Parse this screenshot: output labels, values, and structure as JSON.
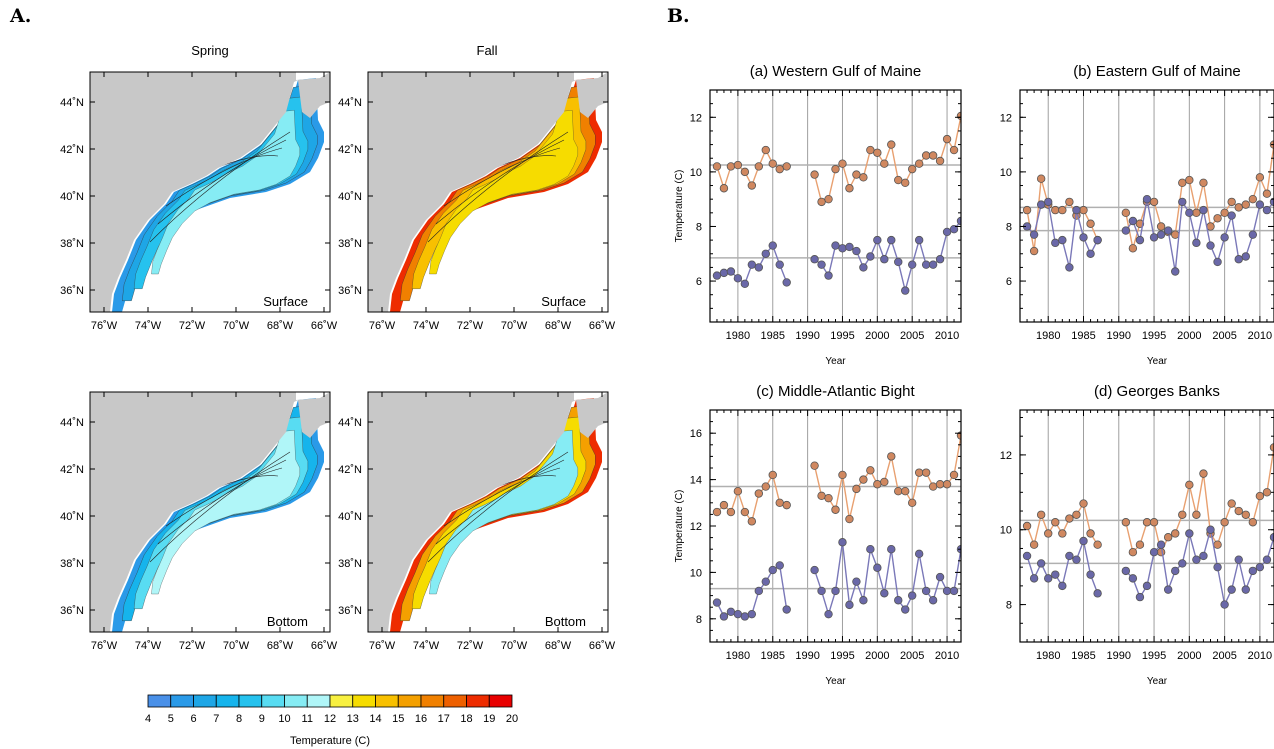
{
  "panels": {
    "A": "A.",
    "B": "B."
  },
  "maps": {
    "col_titles": [
      "Spring",
      "Fall"
    ],
    "row_labels": [
      "Surface",
      "Surface",
      "Bottom",
      "Bottom"
    ],
    "lon_ticks": [
      "76˚W",
      "74˚W",
      "72˚W",
      "70˚W",
      "68˚W",
      "66˚W"
    ],
    "lat_ticks": [
      "44˚N",
      "42˚N",
      "40˚N",
      "38˚N",
      "36˚N"
    ],
    "land_color": "#c8c8c8",
    "colorbar": {
      "levels": [
        "4",
        "5",
        "6",
        "7",
        "8",
        "9",
        "10",
        "11",
        "12",
        "13",
        "14",
        "15",
        "16",
        "17",
        "18",
        "19",
        "20"
      ],
      "colors": [
        "#4a90e8",
        "#2a9ae8",
        "#1ea6e6",
        "#16b4ec",
        "#26c2ee",
        "#58dcf2",
        "#86ecf4",
        "#b0f6f8",
        "#f8f040",
        "#f6dc00",
        "#f8c000",
        "#f4a000",
        "#f08000",
        "#ee6000",
        "#ee2c00",
        "#e80000"
      ],
      "label": "Temperature (C)"
    }
  },
  "chart_data": [
    {
      "type": "line",
      "title": "(a) Western Gulf of Maine",
      "xlabel": "Year",
      "ylabel": "Temperature (C)",
      "xlim": [
        1976,
        2012
      ],
      "ylim": [
        4.5,
        13
      ],
      "yticks": [
        6,
        8,
        10,
        12
      ],
      "xticks": [
        1980,
        1985,
        1990,
        1995,
        2000,
        2005,
        2010
      ],
      "hlines": [
        10.25,
        6.85
      ],
      "series": [
        {
          "color": "#e8a070",
          "x": [
            1977,
            1978,
            1979,
            1980,
            1981,
            1982,
            1983,
            1984,
            1985,
            1986,
            1987,
            1991,
            1992,
            1993,
            1994,
            1995,
            1996,
            1997,
            1998,
            1999,
            2000,
            2001,
            2002,
            2003,
            2004,
            2005,
            2006,
            2007,
            2008,
            2009,
            2010,
            2011,
            2012,
            2013
          ],
          "y": [
            10.2,
            9.4,
            10.2,
            10.25,
            10.0,
            9.5,
            10.2,
            10.8,
            10.3,
            10.1,
            10.2,
            9.9,
            8.9,
            9.0,
            10.1,
            10.3,
            9.4,
            9.9,
            9.8,
            10.8,
            10.7,
            10.3,
            11.0,
            9.7,
            9.6,
            10.1,
            10.3,
            10.6,
            10.6,
            10.4,
            11.2,
            10.8,
            12.05,
            11.0
          ]
        },
        {
          "color": "#7a78b8",
          "x": [
            1977,
            1978,
            1979,
            1980,
            1981,
            1982,
            1983,
            1984,
            1985,
            1986,
            1987,
            1991,
            1992,
            1993,
            1994,
            1995,
            1996,
            1997,
            1998,
            1999,
            2000,
            2001,
            2002,
            2003,
            2004,
            2005,
            2006,
            2007,
            2008,
            2009,
            2010,
            2011,
            2012,
            2013
          ],
          "y": [
            6.2,
            6.3,
            6.35,
            6.1,
            5.9,
            6.6,
            6.5,
            7.0,
            7.3,
            6.6,
            5.95,
            6.8,
            6.6,
            6.2,
            7.3,
            7.2,
            7.25,
            7.1,
            6.5,
            6.9,
            7.5,
            6.8,
            7.5,
            6.7,
            5.65,
            6.6,
            7.5,
            6.6,
            6.6,
            6.8,
            7.8,
            7.9,
            8.2,
            7.7
          ]
        }
      ]
    },
    {
      "type": "line",
      "title": "(b) Eastern Gulf of Maine",
      "xlabel": "Year",
      "ylabel": "",
      "xlim": [
        1976,
        2012
      ],
      "ylim": [
        4.5,
        13
      ],
      "yticks": [
        6,
        8,
        10,
        12
      ],
      "xticks": [
        1980,
        1985,
        1990,
        1995,
        2000,
        2005,
        2010
      ],
      "hlines": [
        8.7,
        7.85
      ],
      "series": [
        {
          "color": "#e8a070",
          "x": [
            1977,
            1978,
            1979,
            1980,
            1981,
            1982,
            1983,
            1984,
            1985,
            1986,
            1987,
            1991,
            1992,
            1993,
            1994,
            1995,
            1996,
            1997,
            1998,
            1999,
            2000,
            2001,
            2002,
            2003,
            2004,
            2005,
            2006,
            2007,
            2008,
            2009,
            2010,
            2011,
            2012,
            2013
          ],
          "y": [
            8.6,
            7.1,
            9.75,
            8.8,
            8.6,
            8.6,
            8.9,
            8.4,
            8.6,
            8.1,
            7.5,
            8.5,
            7.2,
            8.1,
            8.9,
            8.9,
            8.0,
            7.8,
            7.7,
            9.6,
            9.7,
            8.5,
            9.6,
            8.0,
            8.3,
            8.5,
            8.9,
            8.7,
            8.8,
            9.0,
            9.8,
            9.2,
            11.0,
            10.2
          ]
        },
        {
          "color": "#7a78b8",
          "x": [
            1977,
            1978,
            1979,
            1980,
            1981,
            1982,
            1983,
            1984,
            1985,
            1986,
            1987,
            1991,
            1992,
            1993,
            1994,
            1995,
            1996,
            1997,
            1998,
            1999,
            2000,
            2001,
            2002,
            2003,
            2004,
            2005,
            2006,
            2007,
            2008,
            2009,
            2010,
            2011,
            2012,
            2013
          ],
          "y": [
            8.0,
            7.7,
            8.8,
            8.9,
            7.4,
            7.5,
            6.5,
            8.6,
            7.6,
            7.0,
            7.5,
            7.85,
            8.2,
            7.5,
            9.0,
            7.6,
            7.7,
            7.85,
            6.35,
            8.9,
            8.5,
            7.4,
            8.6,
            7.3,
            6.7,
            7.6,
            8.4,
            6.8,
            6.9,
            7.7,
            8.8,
            8.6,
            8.9,
            9.1
          ]
        }
      ]
    },
    {
      "type": "line",
      "title": "(c) Middle-Atlantic Bight",
      "xlabel": "Year",
      "ylabel": "Temperature (C)",
      "xlim": [
        1976,
        2012
      ],
      "ylim": [
        7,
        17
      ],
      "yticks": [
        8,
        10,
        12,
        14,
        16
      ],
      "xticks": [
        1980,
        1985,
        1990,
        1995,
        2000,
        2005,
        2010
      ],
      "hlines": [
        13.7,
        9.3
      ],
      "series": [
        {
          "color": "#e8a070",
          "x": [
            1977,
            1978,
            1979,
            1980,
            1981,
            1982,
            1983,
            1984,
            1985,
            1986,
            1987,
            1991,
            1992,
            1993,
            1994,
            1995,
            1996,
            1997,
            1998,
            1999,
            2000,
            2001,
            2002,
            2003,
            2004,
            2005,
            2006,
            2007,
            2008,
            2009,
            2010,
            2011,
            2012,
            2013
          ],
          "y": [
            12.6,
            12.9,
            12.6,
            13.5,
            12.6,
            12.2,
            13.4,
            13.7,
            14.2,
            13.0,
            12.9,
            14.6,
            13.3,
            13.2,
            12.7,
            14.2,
            12.3,
            13.6,
            14.0,
            14.4,
            13.8,
            13.9,
            15.0,
            13.5,
            13.5,
            13.0,
            14.3,
            14.3,
            13.7,
            13.8,
            13.8,
            14.2,
            15.9,
            13.9
          ]
        },
        {
          "color": "#7a78b8",
          "x": [
            1977,
            1978,
            1979,
            1980,
            1981,
            1982,
            1983,
            1984,
            1985,
            1986,
            1987,
            1991,
            1992,
            1993,
            1994,
            1995,
            1996,
            1997,
            1998,
            1999,
            2000,
            2001,
            2002,
            2003,
            2004,
            2005,
            2006,
            2007,
            2008,
            2009,
            2010,
            2011,
            2012,
            2013
          ],
          "y": [
            8.7,
            8.1,
            8.3,
            8.2,
            8.1,
            8.2,
            9.2,
            9.6,
            10.1,
            10.3,
            8.4,
            10.1,
            9.2,
            8.2,
            9.2,
            11.3,
            8.6,
            9.6,
            8.8,
            11.0,
            10.2,
            9.1,
            11.0,
            8.8,
            8.4,
            9.0,
            10.8,
            9.2,
            8.8,
            9.8,
            9.2,
            9.2,
            11.0,
            9.6
          ]
        }
      ]
    },
    {
      "type": "line",
      "title": "(d) Georges Banks",
      "xlabel": "Year",
      "ylabel": "",
      "xlim": [
        1976,
        2012
      ],
      "ylim": [
        7,
        13.2
      ],
      "yticks": [
        8,
        10,
        12
      ],
      "xticks": [
        1980,
        1985,
        1990,
        1995,
        2000,
        2005,
        2010
      ],
      "hlines": [
        10.25,
        9.1
      ],
      "series": [
        {
          "color": "#e8a070",
          "x": [
            1977,
            1978,
            1979,
            1980,
            1981,
            1982,
            1983,
            1984,
            1985,
            1986,
            1987,
            1991,
            1992,
            1993,
            1994,
            1995,
            1996,
            1997,
            1998,
            1999,
            2000,
            2001,
            2002,
            2003,
            2004,
            2005,
            2006,
            2007,
            2008,
            2009,
            2010,
            2011,
            2012,
            2013
          ],
          "y": [
            10.1,
            9.6,
            10.4,
            9.9,
            10.2,
            9.9,
            10.3,
            10.4,
            10.7,
            9.9,
            9.6,
            10.2,
            9.4,
            9.6,
            10.2,
            10.2,
            9.4,
            9.8,
            9.9,
            10.4,
            11.2,
            10.4,
            11.5,
            9.9,
            9.6,
            10.2,
            10.7,
            10.5,
            10.4,
            10.2,
            10.9,
            11.0,
            12.2,
            12.0
          ]
        },
        {
          "color": "#7a78b8",
          "x": [
            1977,
            1978,
            1979,
            1980,
            1981,
            1982,
            1983,
            1984,
            1985,
            1986,
            1987,
            1991,
            1992,
            1993,
            1994,
            1995,
            1996,
            1997,
            1998,
            1999,
            2000,
            2001,
            2002,
            2003,
            2004,
            2005,
            2006,
            2007,
            2008,
            2009,
            2010,
            2011,
            2012,
            2013
          ],
          "y": [
            9.3,
            8.7,
            9.1,
            8.7,
            8.8,
            8.5,
            9.3,
            9.2,
            9.7,
            8.8,
            8.3,
            8.9,
            8.7,
            8.2,
            8.5,
            9.4,
            9.6,
            8.4,
            8.9,
            9.1,
            9.9,
            9.2,
            9.3,
            10.0,
            9.0,
            8.0,
            8.4,
            9.2,
            8.4,
            8.9,
            9.0,
            9.2,
            9.8,
            10.4
          ]
        }
      ]
    }
  ]
}
